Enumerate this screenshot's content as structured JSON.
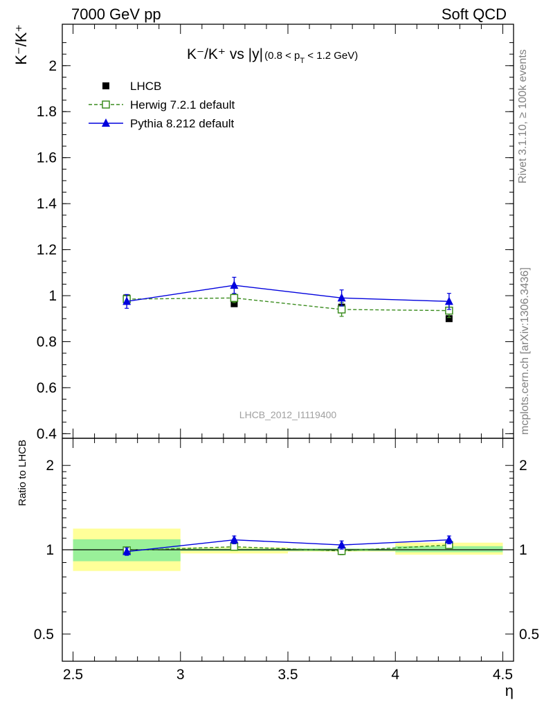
{
  "header": {
    "left": "7000 GeV pp",
    "right": "Soft QCD"
  },
  "side": {
    "rivet": "Rivet 3.1.10, ≥ 100k events",
    "mcplots": "mcplots.cern.ch [arXiv:1306.3436]"
  },
  "chart_data": [
    {
      "type": "line",
      "panel": "main",
      "title": {
        "main": "K⁻/K⁺ vs |y|",
        "sub": "(0.8 < p",
        "sub_index": "T",
        "sub_tail": " < 1.2 GeV)"
      },
      "ylabel": "K⁻/K⁺",
      "xlabel": "η",
      "xlim": [
        2.45,
        4.55
      ],
      "ylim": [
        0.38,
        2.18
      ],
      "yticks": [
        0.4,
        0.6,
        0.8,
        1,
        1.2,
        1.4,
        1.6,
        1.8,
        2
      ],
      "ytick_labels": [
        "0.4",
        "0.6",
        "0.8",
        "1",
        "1.2",
        "1.4",
        "1.6",
        "1.8",
        "2"
      ],
      "watermark": "LHCB_2012_I1119400",
      "legend": [
        {
          "label": "LHCB",
          "color": "#000000",
          "marker": "filled-square",
          "line": "none"
        },
        {
          "label": "Herwig 7.2.1 default",
          "color": "#3a8c1e",
          "marker": "open-square",
          "line": "dashed"
        },
        {
          "label": "Pythia 8.212 default",
          "color": "#0000dd",
          "marker": "filled-triangle",
          "line": "solid"
        }
      ],
      "x": [
        2.75,
        3.25,
        3.75,
        4.25
      ],
      "series": [
        {
          "name": "LHCB",
          "values": [
            0.99,
            0.965,
            0.95,
            0.9
          ],
          "errors": [
            0.01,
            0.01,
            0.01,
            0.01
          ]
        },
        {
          "name": "Herwig 7.2.1 default",
          "values": [
            0.985,
            0.99,
            0.94,
            0.935
          ],
          "errors": [
            0.015,
            0.02,
            0.03,
            0.03
          ]
        },
        {
          "name": "Pythia 8.212 default",
          "values": [
            0.975,
            1.045,
            0.99,
            0.975
          ],
          "errors": [
            0.03,
            0.035,
            0.035,
            0.035
          ]
        }
      ]
    },
    {
      "type": "line",
      "panel": "ratio",
      "ylabel": "Ratio to LHCB",
      "xlabel": "η",
      "xlim": [
        2.45,
        4.55
      ],
      "ylim": [
        0.4,
        2.5
      ],
      "log_y": true,
      "yticks": [
        0.5,
        1,
        2
      ],
      "ytick_labels": [
        "0.5",
        "1",
        "2"
      ],
      "xticks": [
        2.5,
        3,
        3.5,
        4,
        4.5
      ],
      "xtick_labels": [
        "2.5",
        "3",
        "3.5",
        "4",
        "4.5"
      ],
      "bins": [
        [
          2.5,
          3.0
        ],
        [
          3.0,
          3.5
        ],
        [
          3.5,
          4.0
        ],
        [
          4.0,
          4.5
        ]
      ],
      "band_inner": [
        [
          0.91,
          1.09
        ],
        [
          0.99,
          1.01
        ],
        [
          0.99,
          1.01
        ],
        [
          0.98,
          1.03
        ]
      ],
      "band_outer": [
        [
          0.84,
          1.19
        ],
        [
          0.97,
          1.02
        ],
        [
          0.985,
          1.01
        ],
        [
          0.96,
          1.06
        ]
      ],
      "x": [
        2.75,
        3.25,
        3.75,
        4.25
      ],
      "series": [
        {
          "name": "Herwig 7.2.1 default",
          "values": [
            0.995,
            1.025,
            0.99,
            1.04
          ],
          "errors": [
            0.015,
            0.02,
            0.03,
            0.03
          ]
        },
        {
          "name": "Pythia 8.212 default",
          "values": [
            0.985,
            1.085,
            1.04,
            1.085
          ],
          "errors": [
            0.03,
            0.035,
            0.035,
            0.035
          ]
        }
      ]
    }
  ]
}
